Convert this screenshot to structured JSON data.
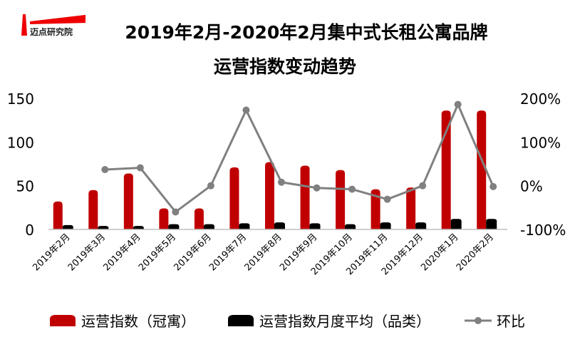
{
  "logo": {
    "text": "迈点研究院"
  },
  "chart_data": {
    "type": "bar",
    "title": "2019年2月-2020年2月集中式长租公寓品牌",
    "subtitle": "运营指数变动趋势",
    "categories": [
      "2019年2月",
      "2019年3月",
      "2019年4月",
      "2019年5月",
      "2019年6月",
      "2019年7月",
      "2019年8月",
      "2019年9月",
      "2019年10月",
      "2019年11月",
      "2019年12月",
      "2020年1月",
      "2020年2月"
    ],
    "series": [
      {
        "name": "运营指数（冠寓）",
        "type": "bar",
        "axis": "left",
        "color": "#C00000",
        "values": [
          32,
          45,
          64,
          24,
          24,
          71,
          77,
          73,
          68,
          46,
          48,
          136,
          136
        ]
      },
      {
        "name": "运营指数月度平均（品类）",
        "type": "bar",
        "axis": "left",
        "color": "#000000",
        "values": [
          5,
          4,
          4,
          6,
          6,
          7,
          8,
          7,
          6,
          8,
          8,
          12,
          12
        ]
      },
      {
        "name": "环比",
        "type": "line",
        "axis": "right",
        "color": "#808080",
        "values": [
          null,
          37,
          41,
          -60,
          0,
          173,
          8,
          -5,
          -8,
          -31,
          0,
          186,
          -2
        ]
      }
    ],
    "left_axis": {
      "ylim": [
        0,
        150
      ],
      "ticks": [
        "0",
        "50",
        "100",
        "150"
      ]
    },
    "right_axis": {
      "ylim": [
        -100,
        200
      ],
      "ticks": [
        "-100%",
        "0%",
        "100%",
        "200%"
      ]
    },
    "legend": "bottom",
    "grid": false
  }
}
